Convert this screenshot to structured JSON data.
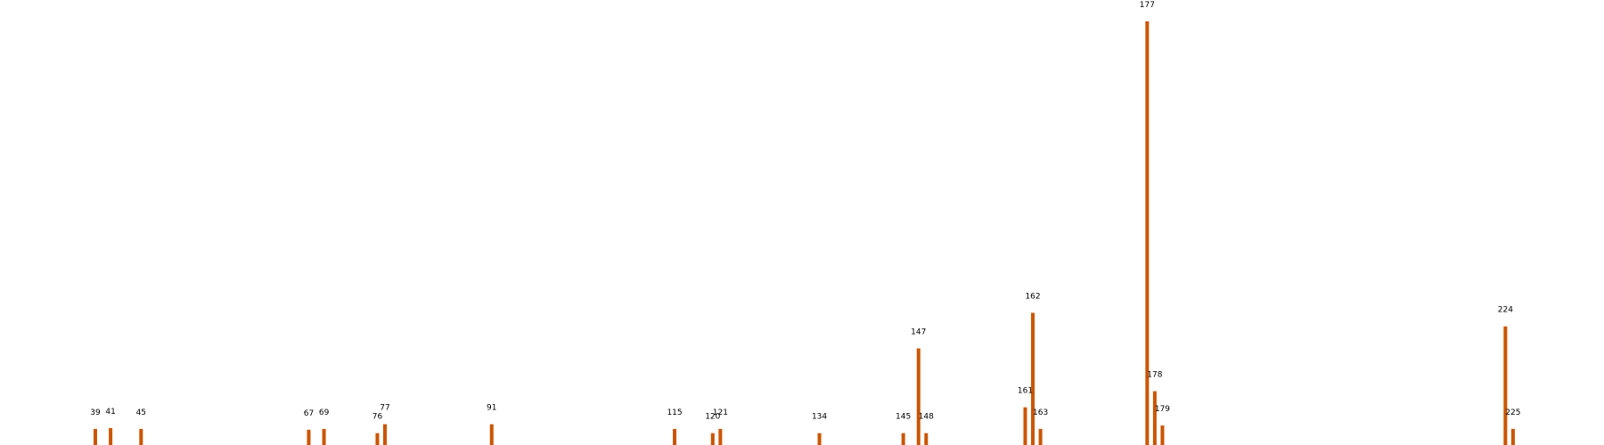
{
  "chart_data": {
    "type": "bar",
    "title": "",
    "xlabel": "",
    "ylabel": "",
    "axes_visible": false,
    "grid": false,
    "bar_color": "#cc5500",
    "xlim": [
      30,
      236
    ],
    "ylim": [
      0,
      100
    ],
    "points": [
      {
        "x": 39,
        "label": "39",
        "y": 3.8
      },
      {
        "x": 41,
        "label": "41",
        "y": 4.0
      },
      {
        "x": 45,
        "label": "45",
        "y": 3.8
      },
      {
        "x": 67,
        "label": "67",
        "y": 3.6
      },
      {
        "x": 69,
        "label": "69",
        "y": 3.8
      },
      {
        "x": 76,
        "label": "76",
        "y": 2.8
      },
      {
        "x": 77,
        "label": "77",
        "y": 4.9
      },
      {
        "x": 91,
        "label": "91",
        "y": 4.9
      },
      {
        "x": 115,
        "label": "115",
        "y": 3.8
      },
      {
        "x": 120,
        "label": "120",
        "y": 2.8
      },
      {
        "x": 121,
        "label": "121",
        "y": 3.8
      },
      {
        "x": 134,
        "label": "134",
        "y": 2.8
      },
      {
        "x": 145,
        "label": "145",
        "y": 2.8
      },
      {
        "x": 147,
        "label": "147",
        "y": 22.8
      },
      {
        "x": 148,
        "label": "148",
        "y": 2.8
      },
      {
        "x": 161,
        "label": "161",
        "y": 8.9
      },
      {
        "x": 162,
        "label": "162",
        "y": 31.2
      },
      {
        "x": 163,
        "label": "163",
        "y": 3.8
      },
      {
        "x": 177,
        "label": "177",
        "y": 100
      },
      {
        "x": 178,
        "label": "178",
        "y": 12.7
      },
      {
        "x": 179,
        "label": "179",
        "y": 4.6
      },
      {
        "x": 224,
        "label": "224",
        "y": 28.0
      },
      {
        "x": 225,
        "label": "225",
        "y": 3.8
      }
    ]
  }
}
